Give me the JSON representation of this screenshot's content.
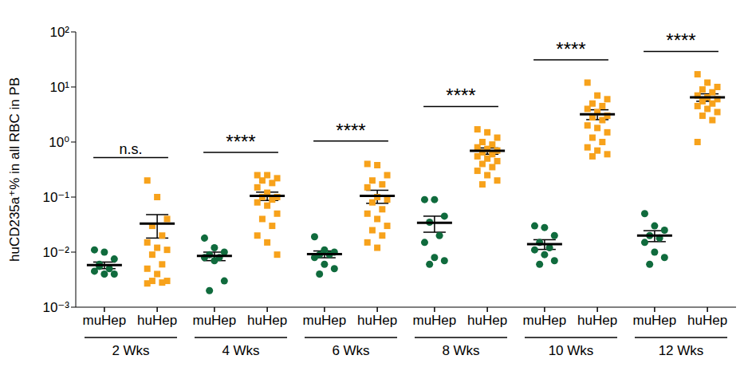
{
  "chart_data": {
    "type": "scatter",
    "y_label": "huCD235a⁺% in all RBC in PB",
    "log": "y",
    "ylim": [
      0.001,
      100
    ],
    "yticks": [
      {
        "value": 0.001,
        "label": "10⁻³"
      },
      {
        "value": 0.01,
        "label": "10⁻²"
      },
      {
        "value": 0.1,
        "label": "10⁻¹"
      },
      {
        "value": 1,
        "label": "10⁰"
      },
      {
        "value": 10,
        "label": "10¹"
      },
      {
        "value": 100,
        "label": "10²"
      }
    ],
    "groups": [
      "2 Wks",
      "4 Wks",
      "6 Wks",
      "8 Wks",
      "10 Wks",
      "12 Wks"
    ],
    "annotations": [
      "n.s.",
      "****",
      "****",
      "****",
      "****",
      "****"
    ],
    "series": [
      {
        "name": "muHep",
        "color": "#106b3d",
        "marker": "circle",
        "values": [
          [
            0.011,
            0.01,
            0.0075,
            0.006,
            0.005,
            0.0045,
            0.004,
            0.004,
            0.0055
          ],
          [
            0.018,
            0.012,
            0.01,
            0.009,
            0.008,
            0.008,
            0.007,
            0.003,
            0.002
          ],
          [
            0.019,
            0.011,
            0.01,
            0.009,
            0.009,
            0.008,
            0.006,
            0.005,
            0.004
          ],
          [
            0.09,
            0.09,
            0.045,
            0.035,
            0.02,
            0.015,
            0.008,
            0.007,
            0.006
          ],
          [
            0.03,
            0.028,
            0.02,
            0.015,
            0.012,
            0.011,
            0.009,
            0.007,
            0.006
          ],
          [
            0.05,
            0.03,
            0.025,
            0.02,
            0.018,
            0.015,
            0.01,
            0.008,
            0.006
          ]
        ],
        "mean": [
          0.0058,
          0.0085,
          0.0092,
          0.034,
          0.014,
          0.02
        ],
        "sem": [
          0.0008,
          0.0015,
          0.0013,
          0.011,
          0.0028,
          0.0045
        ]
      },
      {
        "name": "huHep",
        "color": "#f7a21b",
        "marker": "square",
        "values": [
          [
            0.2,
            0.1,
            0.04,
            0.03,
            0.02,
            0.015,
            0.012,
            0.011,
            0.009,
            0.006,
            0.005,
            0.004,
            0.003,
            0.003,
            0.0028,
            0.0027
          ],
          [
            0.25,
            0.25,
            0.22,
            0.2,
            0.18,
            0.15,
            0.12,
            0.1,
            0.1,
            0.09,
            0.08,
            0.07,
            0.05,
            0.04,
            0.03,
            0.02,
            0.015,
            0.009
          ],
          [
            0.4,
            0.38,
            0.25,
            0.2,
            0.17,
            0.15,
            0.1,
            0.09,
            0.08,
            0.06,
            0.05,
            0.04,
            0.03,
            0.025,
            0.02,
            0.015,
            0.012
          ],
          [
            1.7,
            1.5,
            1.2,
            1.0,
            0.9,
            0.8,
            0.75,
            0.7,
            0.65,
            0.6,
            0.55,
            0.5,
            0.45,
            0.4,
            0.35,
            0.3,
            0.25,
            0.2,
            0.17
          ],
          [
            12,
            7,
            6,
            5,
            4.5,
            4,
            3.5,
            3,
            2.8,
            2.5,
            2,
            1.8,
            1.5,
            1.2,
            1,
            0.8,
            0.7,
            0.6,
            0.55
          ],
          [
            17,
            12,
            10,
            9,
            8,
            7,
            6.5,
            6,
            5.5,
            5,
            4.5,
            4,
            3.5,
            3,
            2.5,
            1
          ]
        ],
        "mean": [
          0.033,
          0.105,
          0.105,
          0.69,
          3.2,
          6.5
        ],
        "sem": [
          0.015,
          0.018,
          0.028,
          0.09,
          0.65,
          1.0
        ]
      }
    ]
  }
}
